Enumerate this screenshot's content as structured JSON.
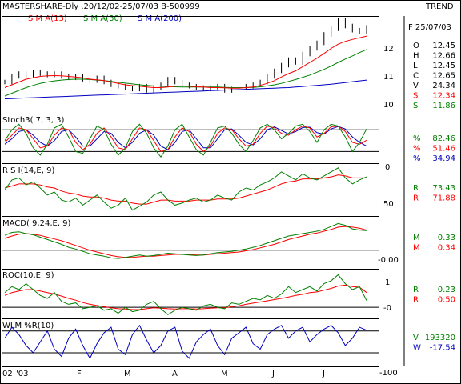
{
  "header": {
    "title": "MASTERSHARE-Dly .20/12/02-25/07/03  B-500999",
    "right": "TREND",
    "legend": [
      {
        "label": "S M A(13)",
        "color": "#ff0000"
      },
      {
        "label": "S M A(30)",
        "color": "#008000"
      },
      {
        "label": "S M A(200)",
        "color": "#0000c0"
      }
    ]
  },
  "colors": {
    "red": "#ff0000",
    "green": "#008000",
    "blue": "#0000c0",
    "navy": "#0000c0",
    "black": "#000000"
  },
  "chart_data": {
    "type": "line",
    "x_labels": [
      "02",
      "'03",
      "F",
      "M",
      "A",
      "M",
      "J",
      "J"
    ],
    "panels": [
      {
        "name": "price",
        "yticks": [
          "12",
          "11",
          "10"
        ],
        "ylim": [
          9.6,
          13.0
        ],
        "info_date": "F 25/07/03",
        "info": [
          {
            "k": "O",
            "v": "12.45",
            "color": "#000000"
          },
          {
            "k": "H",
            "v": "12.66",
            "color": "#000000"
          },
          {
            "k": "L",
            "v": "12.45",
            "color": "#000000"
          },
          {
            "k": "C",
            "v": "12.65",
            "color": "#000000"
          },
          {
            "k": "V",
            "v": "24.34",
            "color": "#000000"
          },
          {
            "k": "S",
            "v": "12.34",
            "color": "#ff0000"
          },
          {
            "k": "S",
            "v": "11.86",
            "color": "#008000"
          }
        ],
        "close": [
          10.7,
          10.9,
          11.0,
          10.95,
          11.05,
          11.0,
          10.95,
          11.0,
          10.9,
          10.85,
          10.9,
          10.8,
          10.75,
          10.85,
          10.7,
          10.6,
          10.55,
          10.5,
          10.45,
          10.55,
          10.4,
          10.5,
          10.6,
          10.8,
          10.7,
          10.6,
          10.55,
          10.5,
          10.45,
          10.5,
          10.55,
          10.4,
          10.45,
          10.5,
          10.55,
          10.6,
          10.7,
          10.9,
          11.1,
          11.3,
          11.5,
          11.4,
          11.7,
          11.9,
          12.1,
          12.4,
          12.6,
          12.9,
          12.7,
          12.55,
          12.5,
          12.65
        ],
        "sma13": [
          10.5,
          10.6,
          10.7,
          10.8,
          10.85,
          10.9,
          10.92,
          10.93,
          10.92,
          10.9,
          10.88,
          10.85,
          10.8,
          10.78,
          10.75,
          10.7,
          10.65,
          10.6,
          10.57,
          10.55,
          10.52,
          10.5,
          10.5,
          10.52,
          10.55,
          10.56,
          10.55,
          10.53,
          10.52,
          10.5,
          10.5,
          10.49,
          10.48,
          10.48,
          10.5,
          10.52,
          10.58,
          10.65,
          10.75,
          10.88,
          11.0,
          11.1,
          11.25,
          11.4,
          11.55,
          11.72,
          11.9,
          12.05,
          12.15,
          12.22,
          12.28,
          12.34
        ],
        "sma30": [
          10.2,
          10.3,
          10.4,
          10.5,
          10.58,
          10.65,
          10.7,
          10.74,
          10.77,
          10.79,
          10.8,
          10.8,
          10.79,
          10.77,
          10.75,
          10.72,
          10.69,
          10.66,
          10.63,
          10.6,
          10.58,
          10.56,
          10.55,
          10.54,
          10.53,
          10.52,
          10.52,
          10.52,
          10.52,
          10.52,
          10.52,
          10.51,
          10.5,
          10.5,
          10.5,
          10.51,
          10.53,
          10.56,
          10.6,
          10.65,
          10.72,
          10.79,
          10.87,
          10.95,
          11.05,
          11.15,
          11.27,
          11.4,
          11.52,
          11.63,
          11.75,
          11.86
        ],
        "sma200": [
          10.1,
          10.11,
          10.12,
          10.13,
          10.14,
          10.15,
          10.16,
          10.17,
          10.18,
          10.19,
          10.2,
          10.21,
          10.22,
          10.23,
          10.24,
          10.25,
          10.26,
          10.27,
          10.28,
          10.29,
          10.3,
          10.31,
          10.32,
          10.33,
          10.34,
          10.35,
          10.36,
          10.37,
          10.38,
          10.39,
          10.4,
          10.41,
          10.42,
          10.43,
          10.44,
          10.45,
          10.46,
          10.47,
          10.48,
          10.49,
          10.5,
          10.52,
          10.54,
          10.56,
          10.58,
          10.6,
          10.62,
          10.65,
          10.68,
          10.71,
          10.74,
          10.77
        ]
      },
      {
        "name": "stoch",
        "label": "Stoch3( 7, 3, 3)",
        "yticks": [
          "0"
        ],
        "ylim": [
          -10,
          120
        ],
        "levels": [
          80,
          20
        ],
        "info": [
          {
            "k": "%",
            "v": "82.46",
            "color": "#008000"
          },
          {
            "k": "%",
            "v": "51.46",
            "color": "#ff0000"
          },
          {
            "k": "%",
            "v": "34.94",
            "color": "#0000c0"
          }
        ],
        "k": [
          50,
          80,
          95,
          70,
          30,
          10,
          40,
          85,
          95,
          60,
          20,
          15,
          55,
          90,
          80,
          40,
          10,
          30,
          75,
          95,
          70,
          30,
          5,
          35,
          80,
          95,
          60,
          25,
          10,
          45,
          85,
          90,
          70,
          40,
          20,
          50,
          85,
          95,
          80,
          55,
          70,
          90,
          95,
          75,
          45,
          80,
          95,
          90,
          60,
          20,
          45,
          82
        ],
        "d": [
          45,
          65,
          85,
          80,
          55,
          30,
          35,
          65,
          85,
          80,
          45,
          25,
          40,
          70,
          85,
          60,
          30,
          25,
          55,
          85,
          80,
          50,
          20,
          25,
          60,
          85,
          75,
          40,
          20,
          35,
          70,
          85,
          80,
          55,
          35,
          40,
          70,
          90,
          85,
          70,
          65,
          80,
          90,
          85,
          60,
          70,
          88,
          90,
          75,
          45,
          40,
          51
        ],
        "s": [
          40,
          55,
          75,
          80,
          65,
          45,
          35,
          50,
          75,
          80,
          60,
          35,
          35,
          55,
          75,
          70,
          45,
          30,
          45,
          70,
          80,
          65,
          35,
          25,
          45,
          75,
          80,
          55,
          30,
          30,
          55,
          80,
          82,
          65,
          45,
          38,
          55,
          80,
          88,
          78,
          68,
          75,
          86,
          87,
          72,
          68,
          82,
          89,
          82,
          60,
          45,
          35
        ]
      },
      {
        "name": "rsi",
        "label": "R S I(14,E, 9)",
        "yticks": [
          "50"
        ],
        "ylim": [
          35,
          85
        ],
        "info": [
          {
            "k": "R",
            "v": "73.43",
            "color": "#008000"
          },
          {
            "k": "R",
            "v": "71.88",
            "color": "#ff0000"
          }
        ],
        "rsi": [
          60,
          70,
          72,
          65,
          68,
          62,
          55,
          58,
          50,
          48,
          52,
          45,
          50,
          55,
          48,
          42,
          45,
          52,
          40,
          44,
          48,
          55,
          58,
          50,
          45,
          47,
          50,
          52,
          48,
          50,
          55,
          52,
          50,
          58,
          62,
          60,
          65,
          68,
          72,
          78,
          74,
          70,
          76,
          72,
          70,
          74,
          78,
          82,
          72,
          66,
          70,
          73
        ],
        "signal": [
          62,
          64,
          66,
          66,
          66,
          65,
          63,
          62,
          59,
          57,
          56,
          54,
          53,
          53,
          52,
          50,
          49,
          49,
          47,
          46,
          46,
          48,
          50,
          50,
          49,
          49,
          49,
          50,
          50,
          50,
          51,
          51,
          51,
          52,
          54,
          56,
          58,
          60,
          63,
          66,
          68,
          69,
          71,
          71,
          71,
          72,
          73,
          75,
          74,
          72,
          72,
          72
        ]
      },
      {
        "name": "macd",
        "label": "MACD( 9,24,E, 9)",
        "yticks": [
          "-0.00"
        ],
        "ylim": [
          -0.3,
          0.55
        ],
        "zero": 0,
        "info": [
          {
            "k": "M",
            "v": "0.33",
            "color": "#008000"
          },
          {
            "k": "M",
            "v": "0.34",
            "color": "#ff0000"
          }
        ],
        "macd": [
          0.25,
          0.3,
          0.31,
          0.28,
          0.26,
          0.22,
          0.18,
          0.14,
          0.1,
          0.05,
          0.02,
          -0.02,
          -0.06,
          -0.08,
          -0.1,
          -0.13,
          -0.14,
          -0.12,
          -0.1,
          -0.08,
          -0.1,
          -0.09,
          -0.07,
          -0.05,
          -0.06,
          -0.07,
          -0.08,
          -0.09,
          -0.08,
          -0.06,
          -0.04,
          -0.03,
          -0.02,
          0.0,
          0.02,
          0.05,
          0.08,
          0.12,
          0.16,
          0.2,
          0.24,
          0.26,
          0.28,
          0.3,
          0.32,
          0.35,
          0.4,
          0.45,
          0.42,
          0.36,
          0.34,
          0.33
        ],
        "signal": [
          0.2,
          0.24,
          0.27,
          0.28,
          0.27,
          0.25,
          0.22,
          0.19,
          0.16,
          0.12,
          0.08,
          0.04,
          0.0,
          -0.03,
          -0.06,
          -0.09,
          -0.11,
          -0.12,
          -0.12,
          -0.11,
          -0.1,
          -0.1,
          -0.09,
          -0.08,
          -0.07,
          -0.07,
          -0.07,
          -0.08,
          -0.08,
          -0.07,
          -0.06,
          -0.05,
          -0.04,
          -0.03,
          -0.01,
          0.01,
          0.04,
          0.07,
          0.1,
          0.14,
          0.18,
          0.21,
          0.24,
          0.27,
          0.29,
          0.32,
          0.35,
          0.39,
          0.4,
          0.39,
          0.37,
          0.34
        ]
      },
      {
        "name": "roc",
        "label": "ROC(10,E, 9)",
        "yticks": [
          "1",
          "-0"
        ],
        "ylim": [
          -0.35,
          1.25
        ],
        "zero": 0,
        "info": [
          {
            "k": "R",
            "v": "0.23",
            "color": "#008000"
          },
          {
            "k": "R",
            "v": "0.50",
            "color": "#ff0000"
          }
        ],
        "roc": [
          0.5,
          0.7,
          0.6,
          0.8,
          0.6,
          0.4,
          0.3,
          0.5,
          0.2,
          0.1,
          0.15,
          -0.05,
          0.0,
          0.05,
          -0.1,
          -0.05,
          -0.2,
          0.0,
          -0.15,
          -0.1,
          0.1,
          0.2,
          -0.05,
          -0.25,
          -0.1,
          0.0,
          -0.05,
          -0.1,
          0.05,
          0.1,
          0.0,
          -0.05,
          0.15,
          0.1,
          0.2,
          0.3,
          0.25,
          0.4,
          0.3,
          0.45,
          0.7,
          0.5,
          0.6,
          0.7,
          0.55,
          0.8,
          0.9,
          1.1,
          0.8,
          0.6,
          0.7,
          0.23
        ],
        "signal": [
          0.4,
          0.5,
          0.55,
          0.6,
          0.6,
          0.55,
          0.5,
          0.45,
          0.38,
          0.3,
          0.24,
          0.16,
          0.1,
          0.06,
          0.02,
          -0.02,
          -0.05,
          -0.06,
          -0.08,
          -0.08,
          -0.05,
          -0.02,
          -0.03,
          -0.05,
          -0.06,
          -0.05,
          -0.05,
          -0.06,
          -0.05,
          -0.03,
          -0.02,
          -0.02,
          0.02,
          0.05,
          0.1,
          0.14,
          0.18,
          0.22,
          0.26,
          0.3,
          0.35,
          0.4,
          0.44,
          0.5,
          0.52,
          0.58,
          0.64,
          0.72,
          0.75,
          0.7,
          0.68,
          0.5
        ]
      },
      {
        "name": "wlm",
        "label": "WLM %R(10)",
        "yticks": [
          "-100"
        ],
        "ylim": [
          -115,
          10
        ],
        "levels": [
          -20,
          -80
        ],
        "info": [
          {
            "k": "V",
            "v": "193320",
            "color": "#008000"
          },
          {
            "k": "W",
            "v": "-17.54",
            "color": "#0000c0"
          }
        ],
        "wr": [
          -40,
          -10,
          -30,
          -60,
          -80,
          -50,
          -20,
          -70,
          -90,
          -40,
          -15,
          -60,
          -95,
          -55,
          -25,
          -10,
          -70,
          -85,
          -30,
          -5,
          -45,
          -80,
          -60,
          -20,
          -10,
          -75,
          -95,
          -50,
          -30,
          -15,
          -60,
          -85,
          -40,
          -25,
          -10,
          -55,
          -70,
          -30,
          -15,
          -5,
          -40,
          -20,
          -10,
          -50,
          -30,
          -15,
          -5,
          -25,
          -60,
          -40,
          -10,
          -18
        ]
      }
    ]
  }
}
